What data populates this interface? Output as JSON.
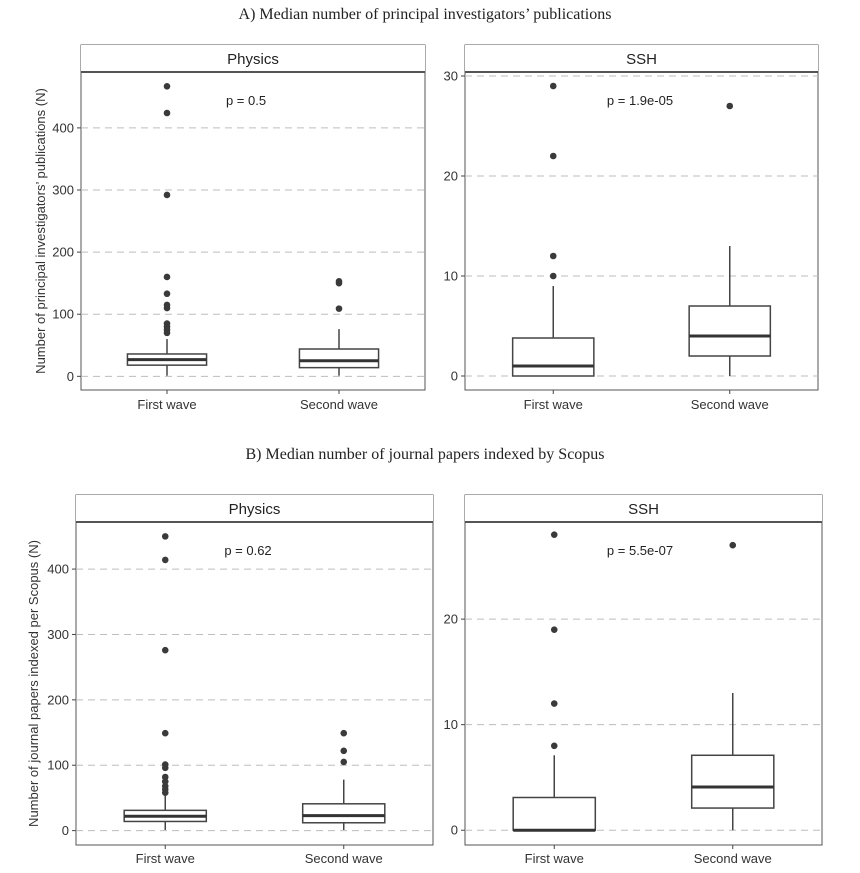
{
  "section_titles": [
    "A) Median number of principal investigators’ publications",
    "B) Median number of journal papers indexed by Scopus"
  ],
  "colors": {
    "box_stroke": "#444444",
    "grid": "#bdbdbd",
    "strip_line": "#555555",
    "outlier": "#3a3a3a"
  },
  "chart_data": [
    {
      "type": "boxplot",
      "section": "A",
      "panel": "Physics",
      "ylabel": "Number of principal investigators’ publications (N)",
      "ylim": [
        -22,
        490
      ],
      "yticks": [
        0,
        100,
        200,
        300,
        400
      ],
      "categories": [
        "First wave",
        "Second wave"
      ],
      "annotation": "p = 0.5",
      "boxes": [
        {
          "category": "First wave",
          "whisker_low": 1,
          "q1": 18,
          "median": 27,
          "q3": 36,
          "whisker_high": 60,
          "outliers": [
            467,
            424,
            292,
            160,
            133,
            115,
            110,
            85,
            80,
            75,
            70
          ]
        },
        {
          "category": "Second wave",
          "whisker_low": 1,
          "q1": 14,
          "median": 25,
          "q3": 44,
          "whisker_high": 76,
          "outliers": [
            153,
            150,
            109
          ]
        }
      ]
    },
    {
      "type": "boxplot",
      "section": "A",
      "panel": "SSH",
      "ylabel": "",
      "ylim": [
        -1.4,
        30.4
      ],
      "yticks": [
        0,
        10,
        20,
        30
      ],
      "categories": [
        "First wave",
        "Second wave"
      ],
      "annotation": "p = 1.9e-05",
      "boxes": [
        {
          "category": "First wave",
          "whisker_low": 0,
          "q1": 0,
          "median": 1,
          "q3": 3.8,
          "whisker_high": 9,
          "outliers": [
            29,
            22,
            12,
            10
          ]
        },
        {
          "category": "Second wave",
          "whisker_low": 0,
          "q1": 2,
          "median": 4,
          "q3": 7,
          "whisker_high": 13,
          "outliers": [
            27
          ]
        }
      ]
    },
    {
      "type": "boxplot",
      "section": "B",
      "panel": "Physics",
      "ylabel": "Number of journal papers indexed per Scopus (N)",
      "ylim": [
        -22,
        472
      ],
      "yticks": [
        0,
        100,
        200,
        300,
        400
      ],
      "categories": [
        "First wave",
        "Second wave"
      ],
      "annotation": "p = 0.62",
      "boxes": [
        {
          "category": "First wave",
          "whisker_low": 1,
          "q1": 14,
          "median": 22,
          "q3": 31,
          "whisker_high": 55,
          "outliers": [
            450,
            414,
            276,
            149,
            101,
            96,
            82,
            75,
            68,
            63,
            58
          ]
        },
        {
          "category": "Second wave",
          "whisker_low": 1,
          "q1": 12,
          "median": 23,
          "q3": 41,
          "whisker_high": 78,
          "outliers": [
            149,
            122,
            105
          ]
        }
      ]
    },
    {
      "type": "boxplot",
      "section": "B",
      "panel": "SSH",
      "ylabel": "",
      "ylim": [
        -1.4,
        29.2
      ],
      "yticks": [
        0,
        10,
        20
      ],
      "categories": [
        "First wave",
        "Second wave"
      ],
      "annotation": "p = 5.5e-07",
      "boxes": [
        {
          "category": "First wave",
          "whisker_low": 0,
          "q1": 0,
          "median": 0,
          "q3": 3.1,
          "whisker_high": 7.1,
          "outliers": [
            28,
            19,
            12,
            8
          ]
        },
        {
          "category": "Second wave",
          "whisker_low": 0,
          "q1": 2.1,
          "median": 4.1,
          "q3": 7.1,
          "whisker_high": 13,
          "outliers": [
            27
          ]
        }
      ]
    }
  ]
}
